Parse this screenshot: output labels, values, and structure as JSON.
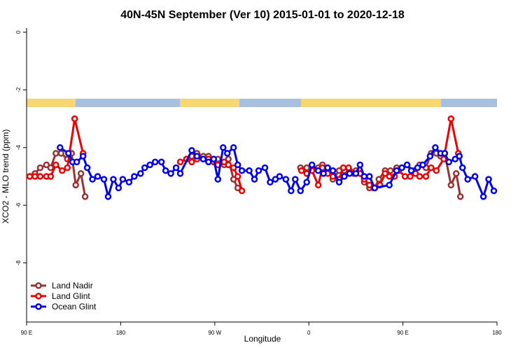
{
  "chart_data": {
    "type": "line",
    "title": "40N-45N September (Ver 10)   2015-01-01 to 2020-12-18",
    "x_label": "Longitude",
    "y_label": "XCO2 - MLO trend (ppm)",
    "xlim": [
      90,
      540
    ],
    "xticks": [
      {
        "value": 90,
        "label": "90 E"
      },
      {
        "value": 180,
        "label": "180"
      },
      {
        "value": 270,
        "label": "90 W"
      },
      {
        "value": 360,
        "label": "0"
      },
      {
        "value": 450,
        "label": "90 E"
      },
      {
        "value": 540,
        "label": "180"
      }
    ],
    "ylim": [
      -10,
      0
    ],
    "yticks": [
      0,
      -2,
      -4,
      -6,
      -8
    ],
    "legend": "bottom-left",
    "series": [
      {
        "name": "Land Nadir",
        "color": "#993333",
        "x": [
          93,
          98,
          103,
          109,
          113,
          118,
          123,
          129,
          133,
          137,
          142,
          146,
          null,
          237,
          243,
          248,
          253,
          259,
          264,
          269,
          273,
          279,
          283,
          288,
          292,
          null,
          352,
          358,
          363,
          369,
          373,
          378,
          383,
          389,
          394,
          399,
          405,
          409,
          413,
          418,
          423,
          427,
          433,
          438,
          444,
          449,
          454,
          460,
          466,
          472,
          477,
          482,
          486,
          490,
          496,
          501,
          505
        ],
        "values": [
          -5.0,
          -4.9,
          -4.7,
          -4.6,
          -4.7,
          -4.2,
          -4.2,
          -4.4,
          -4.2,
          -5.3,
          -4.9,
          -5.7,
          null,
          -4.5,
          -4.4,
          -4.3,
          -4.2,
          -4.3,
          -4.3,
          -4.4,
          -4.4,
          -4.6,
          -4.4,
          -5.1,
          -5.4,
          null,
          -4.7,
          -4.7,
          -4.7,
          -4.7,
          -4.6,
          -4.7,
          -5.1,
          -4.8,
          -4.8,
          -4.8,
          -4.8,
          -4.9,
          -5.2,
          -5.4,
          -5.4,
          -5.1,
          -4.8,
          -4.8,
          -4.7,
          -4.7,
          -4.6,
          -4.8,
          -4.6,
          -4.7,
          -4.2,
          -4.2,
          -4.3,
          -4.2,
          -5.3,
          -4.9,
          -5.7
        ]
      },
      {
        "name": "Land Glint",
        "color": "#ee0000",
        "x": [
          93,
          98,
          103,
          109,
          113,
          118,
          124,
          129,
          136,
          144,
          null,
          237,
          243,
          248,
          253,
          259,
          264,
          269,
          273,
          279,
          283,
          288,
          292,
          296,
          null,
          353,
          358,
          363,
          369,
          373,
          378,
          383,
          389,
          393,
          398,
          403,
          409,
          413,
          418,
          422,
          428,
          433,
          437,
          442,
          446,
          452,
          457,
          462,
          466,
          472,
          477,
          482,
          489,
          496,
          503
        ],
        "values": [
          -5.0,
          -5.0,
          -5.0,
          -5.0,
          -5.0,
          -4.6,
          -4.8,
          -4.7,
          -3.0,
          -4.2,
          null,
          -4.5,
          -4.4,
          -4.5,
          -4.4,
          -4.4,
          -4.4,
          -4.5,
          -4.6,
          -4.5,
          -4.6,
          -4.7,
          -5.0,
          -5.5,
          null,
          -4.8,
          -4.9,
          -4.8,
          -5.3,
          -4.7,
          -4.9,
          -5.0,
          -5.1,
          -4.7,
          -4.7,
          -4.9,
          -4.9,
          -5.1,
          -5.3,
          -5.4,
          -5.3,
          -4.9,
          -5.0,
          -5.0,
          -4.8,
          -5.0,
          -5.0,
          -4.9,
          -5.0,
          -5.0,
          -4.7,
          -4.8,
          -4.4,
          -3.0,
          -4.2
        ]
      },
      {
        "name": "Ocean Glint",
        "color": "#0000ee",
        "x": [
          122,
          130,
          134,
          138,
          144,
          148,
          153,
          158,
          164,
          168,
          173,
          178,
          182,
          188,
          193,
          199,
          203,
          208,
          213,
          219,
          223,
          228,
          233,
          237,
          248,
          253,
          259,
          264,
          269,
          273,
          278,
          282,
          288,
          292,
          296,
          303,
          308,
          312,
          318,
          323,
          328,
          332,
          338,
          343,
          347,
          352,
          358,
          363,
          369,
          374,
          378,
          383,
          389,
          394,
          399,
          405,
          409,
          413,
          418,
          423,
          437,
          444,
          449,
          454,
          458,
          464,
          469,
          476,
          481,
          486,
          490,
          494,
          500,
          504,
          507,
          512,
          519,
          527,
          532,
          537
        ],
        "values": [
          -4.0,
          -4.2,
          -4.5,
          -4.5,
          -4.3,
          -4.7,
          -5.1,
          -5.0,
          -5.1,
          -5.7,
          -5.1,
          -5.4,
          -5.1,
          -5.2,
          -5.0,
          -4.9,
          -4.7,
          -4.6,
          -4.5,
          -4.5,
          -4.8,
          -4.9,
          -4.7,
          -4.9,
          -4.1,
          -4.3,
          -4.4,
          -4.5,
          -4.4,
          -5.1,
          -4.0,
          -4.2,
          -4.0,
          -4.6,
          -4.8,
          -4.8,
          -5.1,
          -4.8,
          -4.7,
          -5.2,
          -5.1,
          -5.0,
          -5.1,
          -5.5,
          -5.1,
          -5.5,
          -5.2,
          -4.6,
          -4.8,
          -4.9,
          -4.7,
          -4.8,
          -5.2,
          -5.0,
          -4.9,
          -4.9,
          -4.6,
          -5.0,
          -5.0,
          -5.4,
          -5.3,
          -4.8,
          -4.7,
          -4.6,
          -4.8,
          -4.7,
          -4.6,
          -4.3,
          -4.0,
          -4.2,
          -4.2,
          -4.5,
          -4.4,
          -4.3,
          -4.7,
          -5.1,
          -5.0,
          -5.7,
          -5.1,
          -5.5
        ]
      }
    ]
  }
}
